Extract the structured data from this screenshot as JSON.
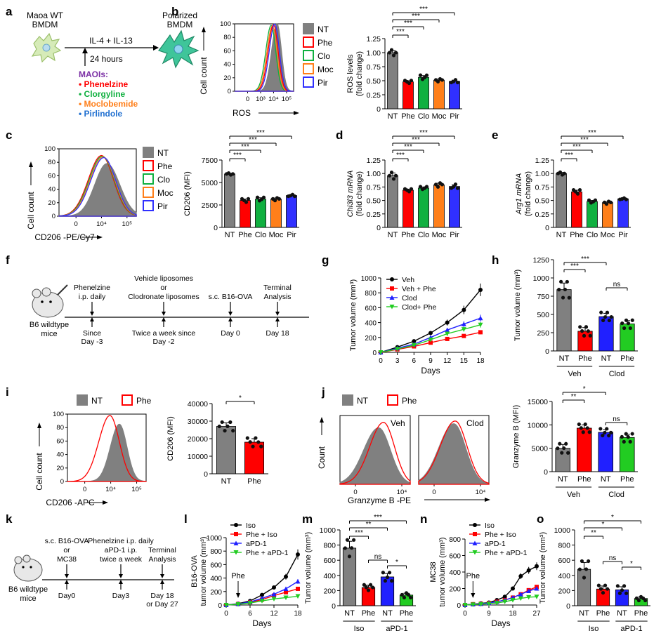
{
  "colors": {
    "NT": "#808080",
    "Phe": "#ff0000",
    "Clo": "#10b040",
    "Moc": "#ff7f1a",
    "Pir": "#3030ff",
    "Veh": "#000000",
    "Clod": "#2020ff",
    "ClodPhe": "#22cc22"
  },
  "panels": {
    "a": {
      "letter": "a",
      "mouse_line1": "Maoa WT",
      "mouse_line2": "BMDM",
      "treatment": "IL-4 + IL-13",
      "time": "24 hours",
      "result_line1": "Polarized",
      "result_line2": "BMDM",
      "maoi_title": "MAOIs:",
      "maoi_list": [
        {
          "name": "Phenelzine",
          "color": "#ff0000"
        },
        {
          "name": "Clorgyline",
          "color": "#10b040"
        },
        {
          "name": "Moclobemide",
          "color": "#ff7f1a"
        },
        {
          "name": "Pirlindole",
          "color": "#1f6fd0"
        }
      ]
    },
    "b": {
      "letter": "b",
      "legend": [
        "NT",
        "Phe",
        "Clo",
        "Moc",
        "Pir"
      ]
    },
    "c": {
      "letter": "c",
      "legend": [
        "NT",
        "Phe",
        "Clo",
        "Moc",
        "Pir"
      ]
    },
    "d": {
      "letter": "d"
    },
    "e": {
      "letter": "e"
    },
    "f": {
      "letter": "f",
      "mouse_line1": "B6 wildtype",
      "mouse_line2": "mice",
      "events": [
        {
          "top": [
            "Phenelzine",
            "i.p. daily"
          ],
          "bottom": [
            "Since",
            "Day -3"
          ]
        },
        {
          "top": [
            "Vehicle liposomes",
            "or",
            "Clodronate liposomes"
          ],
          "bottom": [
            "Twice a week since",
            "Day -2"
          ]
        },
        {
          "top": [
            "s.c. B16-OVA"
          ],
          "bottom": [
            "Day 0"
          ]
        },
        {
          "top": [
            "Terminal",
            "Analysis"
          ],
          "bottom": [
            "Day 18"
          ]
        }
      ]
    },
    "g": {
      "letter": "g"
    },
    "h": {
      "letter": "h",
      "groups": [
        "Veh",
        "Clod"
      ]
    },
    "i": {
      "letter": "i",
      "legend": [
        "NT",
        "Phe"
      ]
    },
    "j": {
      "letter": "j",
      "legend": [
        "NT",
        "Phe"
      ],
      "label_left": "Veh",
      "label_right": "Clod",
      "xlabel": "Granzyme B -PE",
      "ylabel": "Count"
    },
    "j2": {
      "groups": [
        "Veh",
        "Clod"
      ]
    },
    "k": {
      "letter": "k",
      "mouse_line1": "B6 wildtype",
      "mouse_line2": "mice",
      "events": [
        {
          "top": [
            "s.c. B16-OVA",
            "or",
            "MC38"
          ],
          "bottom": [
            "Day0"
          ]
        },
        {
          "top": [
            "Phenelzine i.p. daily",
            "aPD-1 i.p.",
            "twice a week"
          ],
          "bottom": [
            "Day3"
          ]
        },
        {
          "top": [
            "Terminal",
            "Analysis"
          ],
          "bottom": [
            "Day 18",
            "or Day 27"
          ]
        }
      ]
    },
    "l": {
      "letter": "l",
      "arrow_label": "Phe"
    },
    "m": {
      "letter": "m",
      "groups": [
        "Iso",
        "aPD-1"
      ]
    },
    "n": {
      "letter": "n",
      "arrow_label": "Phe"
    },
    "o": {
      "letter": "o",
      "groups": [
        "Iso",
        "aPD-1"
      ]
    }
  },
  "chart_data": [
    {
      "id": "b_hist",
      "type": "area",
      "xlabel": "ROS",
      "ylabel": "Cell count",
      "xtick_labels": [
        "0",
        "10³",
        "10⁴",
        "10⁵"
      ],
      "ytick_labels": [
        "0",
        "20",
        "40",
        "60",
        "80",
        "100"
      ],
      "ylim": [
        0,
        100
      ],
      "series": [
        {
          "name": "NT",
          "peak_x": 3.8,
          "peak": 100
        },
        {
          "name": "Phe",
          "peak_x": 3.55,
          "peak": 98
        },
        {
          "name": "Clo",
          "peak_x": 3.45,
          "peak": 96
        },
        {
          "name": "Moc",
          "peak_x": 3.5,
          "peak": 97
        },
        {
          "name": "Pir",
          "peak_x": 3.55,
          "peak": 100
        }
      ]
    },
    {
      "id": "b_bar",
      "type": "bar",
      "ylabel": "ROS levels (fold change)",
      "categories": [
        "NT",
        "Phe",
        "Clo",
        "Moc",
        "Pir"
      ],
      "values": [
        1.0,
        0.48,
        0.56,
        0.51,
        0.49
      ],
      "errors": [
        0.04,
        0.02,
        0.03,
        0.02,
        0.02
      ],
      "ylim": [
        0,
        1.25
      ],
      "yticks": [
        "0",
        "0.25",
        "0.50",
        "0.75",
        "1.00",
        "1.25"
      ],
      "significance": [
        "***",
        "***",
        "***",
        "***"
      ]
    },
    {
      "id": "c_hist",
      "type": "area",
      "xlabel": "CD206 -PE/Cy7",
      "ylabel": "Cell count",
      "xtick_labels": [
        "0",
        "10⁴",
        "10⁵"
      ],
      "ytick_labels": [
        "0",
        "20",
        "40",
        "60",
        "80",
        "100"
      ],
      "ylim": [
        0,
        100
      ]
    },
    {
      "id": "c_bar",
      "type": "bar",
      "ylabel": "CD206 (MFI)",
      "categories": [
        "NT",
        "Phe",
        "Clo",
        "Moc",
        "Pir"
      ],
      "values": [
        5950,
        3000,
        3150,
        3150,
        3550
      ],
      "errors": [
        80,
        150,
        150,
        120,
        80
      ],
      "ylim": [
        0,
        7500
      ],
      "yticks": [
        "0",
        "2500",
        "5000",
        "7500"
      ],
      "significance": [
        "***",
        "***",
        "***",
        "***"
      ]
    },
    {
      "id": "d_bar",
      "type": "bar",
      "ylabel": "Chi3l3 mRNA (fold change)",
      "categories": [
        "NT",
        "Phe",
        "Clo",
        "Moc",
        "Pir"
      ],
      "values": [
        0.96,
        0.69,
        0.73,
        0.79,
        0.76
      ],
      "errors": [
        0.05,
        0.02,
        0.02,
        0.03,
        0.03
      ],
      "ylim": [
        0,
        1.25
      ],
      "yticks": [
        "0",
        "0.25",
        "0.50",
        "0.75",
        "1.00",
        "1.25"
      ],
      "significance": [
        "***",
        "***",
        "***",
        "***"
      ]
    },
    {
      "id": "e_bar",
      "type": "bar",
      "ylabel": "Arg1 mRNA (fold change)",
      "categories": [
        "NT",
        "Phe",
        "Clo",
        "Moc",
        "Pir"
      ],
      "values": [
        1.0,
        0.66,
        0.48,
        0.46,
        0.53
      ],
      "errors": [
        0.02,
        0.03,
        0.02,
        0.02,
        0.01
      ],
      "ylim": [
        0,
        1.25
      ],
      "yticks": [
        "0",
        "0.25",
        "0.50",
        "0.75",
        "1.00",
        "1.25"
      ],
      "significance": [
        "***",
        "***",
        "***",
        "***"
      ]
    },
    {
      "id": "g_line",
      "type": "line",
      "xlabel": "Days",
      "ylabel": "Tumor volume (mm³)",
      "x": [
        0,
        3,
        6,
        9,
        12,
        15,
        18
      ],
      "ylim": [
        0,
        1000
      ],
      "xticks": [
        "0",
        "3",
        "6",
        "9",
        "12",
        "15",
        "18"
      ],
      "yticks": [
        "0",
        "200",
        "400",
        "600",
        "800",
        "1000"
      ],
      "series": [
        {
          "name": "Veh",
          "values": [
            0,
            70,
            150,
            260,
            400,
            570,
            840
          ]
        },
        {
          "name": "Veh + Phe",
          "values": [
            0,
            40,
            80,
            130,
            180,
            220,
            270
          ]
        },
        {
          "name": "Clod",
          "values": [
            0,
            55,
            110,
            200,
            300,
            380,
            460
          ]
        },
        {
          "name": "Clod+ Phe",
          "values": [
            0,
            45,
            95,
            170,
            250,
            310,
            370
          ]
        }
      ]
    },
    {
      "id": "h_bar",
      "type": "bar",
      "ylabel": "Tumor volume (mm³)",
      "categories": [
        "NT",
        "Phe",
        "NT",
        "Phe"
      ],
      "values": [
        840,
        270,
        470,
        370
      ],
      "errors": [
        90,
        50,
        45,
        45
      ],
      "ylim": [
        0,
        1250
      ],
      "yticks": [
        "0",
        "250",
        "500",
        "750",
        "1000",
        "1250"
      ],
      "significance": [
        "***",
        "***",
        "ns"
      ]
    },
    {
      "id": "i_hist",
      "type": "area",
      "xlabel": "CD206 -APC",
      "ylabel": "Cell count",
      "xtick_labels": [
        "0",
        "10⁴",
        "10⁵"
      ],
      "ytick_labels": [
        "0",
        "20",
        "40",
        "60",
        "80",
        "100"
      ],
      "ylim": [
        0,
        100
      ]
    },
    {
      "id": "i_bar",
      "type": "bar",
      "ylabel": "CD206 (MFI)",
      "categories": [
        "NT",
        "Phe"
      ],
      "values": [
        27000,
        18000
      ],
      "errors": [
        2000,
        2000
      ],
      "ylim": [
        0,
        40000
      ],
      "yticks": [
        "0",
        "10000",
        "20000",
        "30000",
        "40000"
      ],
      "significance": [
        "*"
      ]
    },
    {
      "id": "j_hist",
      "type": "area",
      "xlabel": "Granzyme B -PE",
      "ylabel": "Count",
      "xtick_labels": [
        "0",
        "10⁴"
      ]
    },
    {
      "id": "j_bar",
      "type": "bar",
      "ylabel": "Granzyme B (MFI)",
      "categories": [
        "NT",
        "Phe",
        "NT",
        "Phe"
      ],
      "values": [
        5000,
        9300,
        8400,
        7300
      ],
      "errors": [
        800,
        700,
        600,
        700
      ],
      "ylim": [
        0,
        15000
      ],
      "yticks": [
        "0",
        "5000",
        "10000",
        "15000"
      ],
      "significance": [
        "**",
        "*",
        "ns"
      ]
    },
    {
      "id": "l_line",
      "type": "line",
      "xlabel": "Days",
      "ylabel": "B16-OVA tumor volume (mm³)",
      "x": [
        0,
        3,
        6,
        9,
        12,
        15,
        18
      ],
      "ylim": [
        0,
        1000
      ],
      "xticks": [
        "0",
        "6",
        "12",
        "18"
      ],
      "yticks": [
        "0",
        "200",
        "400",
        "600",
        "800",
        "1000"
      ],
      "series": [
        {
          "name": "Iso",
          "values": [
            0,
            20,
            60,
            150,
            260,
            420,
            750
          ]
        },
        {
          "name": "Phe + Iso",
          "values": [
            0,
            15,
            40,
            80,
            140,
            190,
            240
          ]
        },
        {
          "name": "aPD-1",
          "values": [
            0,
            15,
            45,
            100,
            160,
            240,
            350
          ]
        },
        {
          "name": "Phe + aPD-1",
          "values": [
            0,
            10,
            30,
            60,
            90,
            110,
            130
          ]
        }
      ]
    },
    {
      "id": "m_bar",
      "type": "bar",
      "ylabel": "Tumor volume (mm³)",
      "categories": [
        "NT",
        "Phe",
        "NT",
        "Phe"
      ],
      "values": [
        760,
        240,
        380,
        140
      ],
      "errors": [
        90,
        30,
        45,
        25
      ],
      "ylim": [
        0,
        1000
      ],
      "yticks": [
        "0",
        "200",
        "400",
        "600",
        "800",
        "1000"
      ],
      "significance": [
        "***",
        "**",
        "***",
        "ns",
        "*"
      ]
    },
    {
      "id": "n_line",
      "type": "line",
      "xlabel": "Days",
      "ylabel": "MC38 tumor volume (mm³)",
      "x": [
        0,
        3,
        6,
        9,
        12,
        15,
        18,
        21,
        24,
        27
      ],
      "ylim": [
        0,
        800
      ],
      "xticks": [
        "0",
        "9",
        "18",
        "27"
      ],
      "yticks": [
        "0",
        "200",
        "400",
        "600",
        "800"
      ],
      "series": [
        {
          "name": "Iso",
          "values": [
            0,
            10,
            20,
            30,
            60,
            100,
            200,
            350,
            420,
            470
          ]
        },
        {
          "name": "Phe + Iso",
          "values": [
            0,
            10,
            15,
            25,
            40,
            60,
            90,
            130,
            180,
            220
          ]
        },
        {
          "name": "aPD-1",
          "values": [
            0,
            10,
            15,
            25,
            40,
            60,
            90,
            130,
            170,
            200
          ]
        },
        {
          "name": "Phe + aPD-1",
          "values": [
            0,
            5,
            10,
            15,
            25,
            40,
            60,
            80,
            95,
            100
          ]
        }
      ]
    },
    {
      "id": "o_bar",
      "type": "bar",
      "ylabel": "Tumor volume (mm³)",
      "categories": [
        "NT",
        "Phe",
        "NT",
        "Phe"
      ],
      "values": [
        480,
        220,
        210,
        95
      ],
      "errors": [
        90,
        40,
        40,
        20
      ],
      "ylim": [
        0,
        1000
      ],
      "yticks": [
        "0",
        "200",
        "400",
        "600",
        "800",
        "1000"
      ],
      "significance": [
        "**",
        "*",
        "*",
        "ns",
        "*"
      ]
    }
  ]
}
